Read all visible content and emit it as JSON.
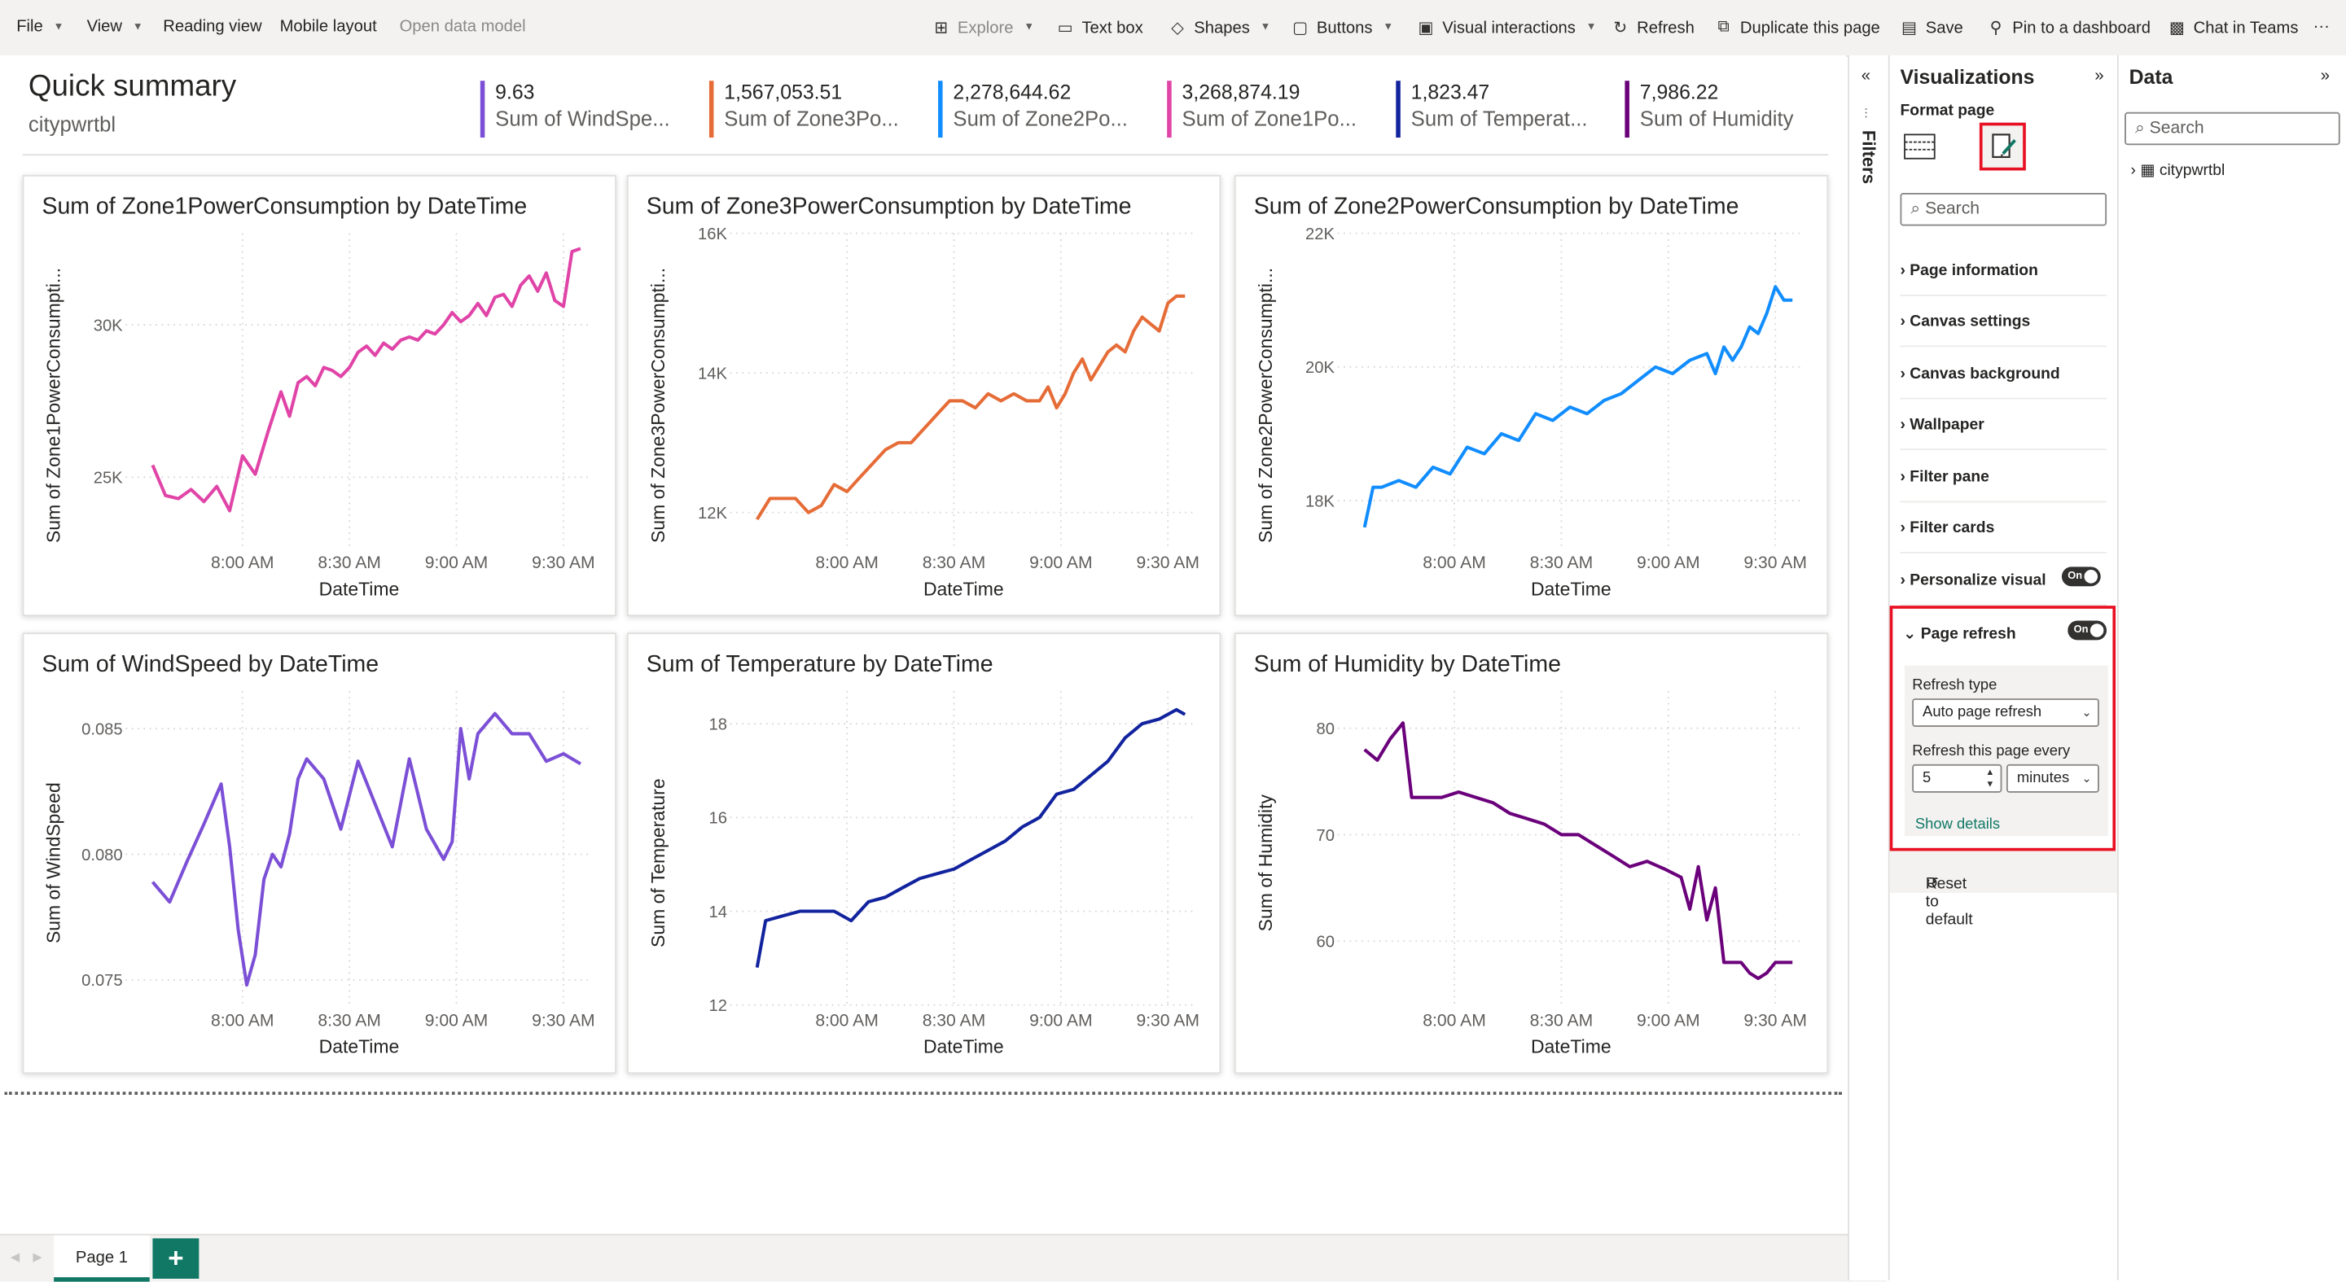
{
  "ribbon": {
    "file": "File",
    "view": "View",
    "reading_view": "Reading view",
    "mobile_layout": "Mobile layout",
    "open_data_model": "Open data model",
    "explore": "Explore",
    "text_box": "Text box",
    "shapes": "Shapes",
    "buttons": "Buttons",
    "visual_interactions": "Visual interactions",
    "refresh": "Refresh",
    "duplicate_page": "Duplicate this page",
    "save": "Save",
    "pin_dashboard": "Pin to a dashboard",
    "chat_teams": "Chat in Teams",
    "more": "···"
  },
  "canvas": {
    "title": "Quick summary",
    "subtitle": "citypwrtbl",
    "kpis": [
      {
        "value": "9.63",
        "label": "Sum of WindSpe...",
        "color": "#7b4fd6"
      },
      {
        "value": "1,567,053.51",
        "label": "Sum of Zone3Po...",
        "color": "#e66c37"
      },
      {
        "value": "2,278,644.62",
        "label": "Sum of Zone2Po...",
        "color": "#118dff"
      },
      {
        "value": "3,268,874.19",
        "label": "Sum of Zone1Po...",
        "color": "#e044a7"
      },
      {
        "value": "1,823.47",
        "label": "Sum of Temperat...",
        "color": "#12239e"
      },
      {
        "value": "7,986.22",
        "label": "Sum of Humidity",
        "color": "#6b007b"
      }
    ]
  },
  "charts": [
    {
      "title": "Sum of Zone1PowerConsumption by DateTime",
      "ylabel": "Sum of Zone1PowerConsumpti...",
      "xlabel": "DateTime",
      "color": "#e044a7"
    },
    {
      "title": "Sum of Zone3PowerConsumption by DateTime",
      "ylabel": "Sum of Zone3PowerConsumpti...",
      "xlabel": "DateTime",
      "color": "#e66c37"
    },
    {
      "title": "Sum of Zone2PowerConsumption by DateTime",
      "ylabel": "Sum of Zone2PowerConsumpti...",
      "xlabel": "DateTime",
      "color": "#118dff"
    },
    {
      "title": "Sum of WindSpeed by DateTime",
      "ylabel": "Sum of WindSpeed",
      "xlabel": "DateTime",
      "color": "#7b4fd6"
    },
    {
      "title": "Sum of Temperature by DateTime",
      "ylabel": "Sum of Temperature",
      "xlabel": "DateTime",
      "color": "#12239e"
    },
    {
      "title": "Sum of Humidity by DateTime",
      "ylabel": "Sum of Humidity",
      "xlabel": "DateTime",
      "color": "#6b007b"
    }
  ],
  "chart_data": [
    {
      "type": "line",
      "title": "Sum of Zone1PowerConsumption by DateTime",
      "xlabel": "DateTime",
      "ylabel": "Sum of Zone1PowerConsumpti...",
      "x_ticks": [
        "8:00 AM",
        "8:30 AM",
        "9:00 AM",
        "9:30 AM"
      ],
      "y_ticks": [
        {
          "v": 25000,
          "label": "25K"
        },
        {
          "v": 30000,
          "label": "30K"
        }
      ],
      "ylim": [
        22700,
        33000
      ],
      "xlim": [
        0,
        100
      ],
      "series": [
        {
          "x": [
            0,
            3,
            6,
            9,
            12,
            15,
            18,
            21,
            24,
            27,
            30,
            32,
            34,
            36,
            38,
            40,
            42,
            44,
            46,
            48,
            50,
            52,
            54,
            56,
            58,
            60,
            62,
            64,
            66,
            68,
            70,
            72,
            74,
            76,
            78,
            80,
            82,
            84,
            86,
            88,
            90,
            92,
            94,
            96,
            98,
            100
          ],
          "y": [
            25400,
            24400,
            24300,
            24600,
            24200,
            24700,
            23900,
            25700,
            25100,
            26500,
            27800,
            27000,
            28100,
            28300,
            28000,
            28600,
            28500,
            28300,
            28600,
            29100,
            29300,
            29000,
            29400,
            29200,
            29500,
            29600,
            29500,
            29800,
            29700,
            30000,
            30400,
            30100,
            30300,
            30700,
            30300,
            30900,
            31000,
            30600,
            31300,
            31600,
            31100,
            31700,
            30800,
            30600,
            32400,
            32500
          ]
        }
      ]
    },
    {
      "type": "line",
      "title": "Sum of Zone3PowerConsumption by DateTime",
      "xlabel": "DateTime",
      "ylabel": "Sum of Zone3PowerConsumpti...",
      "x_ticks": [
        "8:00 AM",
        "8:30 AM",
        "9:00 AM",
        "9:30 AM"
      ],
      "y_ticks": [
        {
          "v": 12000,
          "label": "12K"
        },
        {
          "v": 14000,
          "label": "14K"
        },
        {
          "v": 16000,
          "label": "16K"
        }
      ],
      "ylim": [
        11500,
        16000
      ],
      "xlim": [
        0,
        100
      ],
      "series": [
        {
          "x": [
            0,
            3,
            6,
            9,
            12,
            15,
            18,
            21,
            24,
            27,
            30,
            33,
            36,
            39,
            42,
            45,
            48,
            51,
            54,
            57,
            60,
            63,
            66,
            68,
            70,
            72,
            74,
            76,
            78,
            80,
            82,
            84,
            86,
            88,
            90,
            92,
            94,
            96,
            98,
            100
          ],
          "y": [
            11900,
            12200,
            12200,
            12200,
            12000,
            12100,
            12400,
            12300,
            12500,
            12700,
            12900,
            13000,
            13000,
            13200,
            13400,
            13600,
            13600,
            13500,
            13700,
            13600,
            13700,
            13600,
            13600,
            13800,
            13500,
            13700,
            14000,
            14200,
            13900,
            14100,
            14300,
            14400,
            14300,
            14600,
            14800,
            14700,
            14600,
            15000,
            15100,
            15100
          ]
        }
      ]
    },
    {
      "type": "line",
      "title": "Sum of Zone2PowerConsumption by DateTime",
      "xlabel": "DateTime",
      "ylabel": "Sum of Zone2PowerConsumpti...",
      "x_ticks": [
        "8:00 AM",
        "8:30 AM",
        "9:00 AM",
        "9:30 AM"
      ],
      "y_ticks": [
        {
          "v": 18000,
          "label": "18K"
        },
        {
          "v": 20000,
          "label": "20K"
        },
        {
          "v": 22000,
          "label": "22K"
        }
      ],
      "ylim": [
        17300,
        22000
      ],
      "xlim": [
        0,
        100
      ],
      "series": [
        {
          "x": [
            0,
            2,
            4,
            8,
            12,
            16,
            20,
            24,
            28,
            32,
            36,
            40,
            44,
            48,
            52,
            56,
            60,
            64,
            68,
            72,
            76,
            80,
            82,
            84,
            86,
            88,
            90,
            92,
            94,
            96,
            98,
            100
          ],
          "y": [
            17600,
            18200,
            18200,
            18300,
            18200,
            18500,
            18400,
            18800,
            18700,
            19000,
            18900,
            19300,
            19200,
            19400,
            19300,
            19500,
            19600,
            19800,
            20000,
            19900,
            20100,
            20200,
            19900,
            20300,
            20100,
            20300,
            20600,
            20500,
            20800,
            21200,
            21000,
            21000
          ]
        }
      ]
    },
    {
      "type": "line",
      "title": "Sum of WindSpeed by DateTime",
      "xlabel": "DateTime",
      "ylabel": "Sum of WindSpeed",
      "x_ticks": [
        "8:00 AM",
        "8:30 AM",
        "9:00 AM",
        "9:30 AM"
      ],
      "y_ticks": [
        {
          "v": 0.075,
          "label": "0.075"
        },
        {
          "v": 0.08,
          "label": "0.080"
        },
        {
          "v": 0.085,
          "label": "0.085"
        }
      ],
      "ylim": [
        0.074,
        0.0865
      ],
      "xlim": [
        0,
        100
      ],
      "series": [
        {
          "x": [
            0,
            4,
            8,
            12,
            16,
            18,
            20,
            22,
            24,
            26,
            28,
            30,
            32,
            34,
            36,
            40,
            44,
            48,
            52,
            56,
            60,
            64,
            68,
            70,
            72,
            74,
            76,
            80,
            84,
            88,
            92,
            96,
            100
          ],
          "y": [
            0.0789,
            0.0781,
            0.0797,
            0.0812,
            0.0828,
            0.0803,
            0.077,
            0.0748,
            0.076,
            0.079,
            0.08,
            0.0795,
            0.0808,
            0.083,
            0.0838,
            0.083,
            0.081,
            0.0837,
            0.082,
            0.0803,
            0.0838,
            0.081,
            0.0798,
            0.0805,
            0.085,
            0.083,
            0.0848,
            0.0856,
            0.0848,
            0.0848,
            0.0837,
            0.084,
            0.0836
          ]
        }
      ]
    },
    {
      "type": "line",
      "title": "Sum of Temperature by DateTime",
      "xlabel": "DateTime",
      "ylabel": "Sum of Temperature",
      "x_ticks": [
        "8:00 AM",
        "8:30 AM",
        "9:00 AM",
        "9:30 AM"
      ],
      "y_ticks": [
        {
          "v": 12,
          "label": "12"
        },
        {
          "v": 14,
          "label": "14"
        },
        {
          "v": 16,
          "label": "16"
        },
        {
          "v": 18,
          "label": "18"
        }
      ],
      "ylim": [
        12,
        18.7
      ],
      "xlim": [
        0,
        100
      ],
      "series": [
        {
          "x": [
            0,
            2,
            6,
            10,
            14,
            18,
            22,
            26,
            30,
            34,
            38,
            42,
            46,
            50,
            54,
            58,
            62,
            66,
            70,
            74,
            78,
            82,
            86,
            90,
            94,
            98,
            100
          ],
          "y": [
            12.8,
            13.8,
            13.9,
            14.0,
            14.0,
            14.0,
            13.8,
            14.2,
            14.3,
            14.5,
            14.7,
            14.8,
            14.9,
            15.1,
            15.3,
            15.5,
            15.8,
            16.0,
            16.5,
            16.6,
            16.9,
            17.2,
            17.7,
            18.0,
            18.1,
            18.3,
            18.2
          ]
        }
      ]
    },
    {
      "type": "line",
      "title": "Sum of Humidity by DateTime",
      "xlabel": "DateTime",
      "ylabel": "Sum of Humidity",
      "x_ticks": [
        "8:00 AM",
        "8:30 AM",
        "9:00 AM",
        "9:30 AM"
      ],
      "y_ticks": [
        {
          "v": 60,
          "label": "60"
        },
        {
          "v": 70,
          "label": "70"
        },
        {
          "v": 80,
          "label": "80"
        }
      ],
      "ylim": [
        54,
        83.5
      ],
      "xlim": [
        0,
        100
      ],
      "series": [
        {
          "x": [
            0,
            3,
            6,
            9,
            11,
            14,
            18,
            22,
            26,
            30,
            34,
            38,
            42,
            46,
            50,
            54,
            58,
            62,
            66,
            70,
            74,
            76,
            78,
            80,
            82,
            84,
            86,
            88,
            90,
            92,
            94,
            96,
            98,
            100
          ],
          "y": [
            78,
            77,
            79,
            80.5,
            73.5,
            73.5,
            73.5,
            74,
            73.5,
            73,
            72,
            71.5,
            71,
            70,
            70,
            69,
            68,
            67,
            67.5,
            66.8,
            66,
            63,
            67,
            62,
            65,
            58,
            58,
            58,
            57,
            56.5,
            57,
            58,
            58,
            58
          ]
        }
      ]
    }
  ],
  "filters": {
    "label": "Filters"
  },
  "viz_pane": {
    "title": "Visualizations",
    "format_label": "Format page",
    "search_placeholder": "Search",
    "sections": [
      "Page information",
      "Canvas settings",
      "Canvas background",
      "Wallpaper",
      "Filter pane",
      "Filter cards",
      "Personalize visual"
    ],
    "personalize_toggle": "On",
    "page_refresh": {
      "title": "Page refresh",
      "toggle": "On",
      "refresh_type_label": "Refresh type",
      "refresh_type_value": "Auto page refresh",
      "refresh_every_label": "Refresh this page every",
      "interval_value": "5",
      "unit_value": "minutes",
      "show_details": "Show details"
    },
    "reset": "Reset to default"
  },
  "data_pane": {
    "title": "Data",
    "search_placeholder": "Search",
    "table": "citypwrtbl"
  },
  "pages": {
    "tab": "Page 1",
    "add": "+"
  }
}
